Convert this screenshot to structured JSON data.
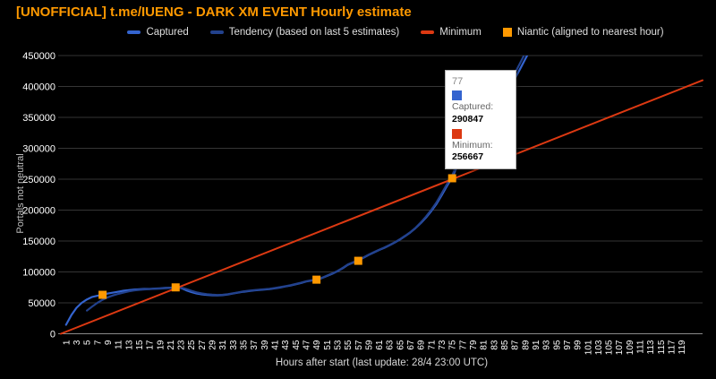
{
  "title": {
    "text": "[UNOFFICIAL] t.me/IUENG - DARK XM EVENT Hourly estimate",
    "color": "#ff9900"
  },
  "legend": {
    "position": "top",
    "items": [
      {
        "label": "Captured",
        "marker": "line",
        "color": "#3464cf"
      },
      {
        "label": "Tendency (based on last 5 estimates)",
        "marker": "line",
        "color": "#22418c"
      },
      {
        "label": "Minimum",
        "marker": "line",
        "color": "#dc3912"
      },
      {
        "label": "Niantic (aligned to nearest hour)",
        "marker": "square",
        "color": "#ff9900"
      }
    ]
  },
  "tooltip": {
    "hour": "77",
    "rows": [
      {
        "label": "Captured:",
        "value": "290847",
        "color": "#3464cf"
      },
      {
        "label": "Minimum:",
        "value": "256667",
        "color": "#dc3912"
      }
    ]
  },
  "chart_data": {
    "type": "line",
    "title": "[UNOFFICIAL] t.me/IUENG - DARK XM EVENT Hourly estimate",
    "xlabel": "Hours after start (last update: 28/4 23:00 UTC)",
    "ylabel": "Portals not neutral",
    "background": "#000000",
    "grid": true,
    "legend_position": "top",
    "xlim": [
      0,
      123
    ],
    "ylim": [
      0,
      450000
    ],
    "y_ticks": [
      0,
      50000,
      100000,
      150000,
      200000,
      250000,
      300000,
      350000,
      400000,
      450000
    ],
    "x_ticks": [
      1,
      3,
      5,
      7,
      9,
      11,
      13,
      15,
      17,
      19,
      21,
      23,
      25,
      27,
      29,
      31,
      33,
      35,
      37,
      39,
      41,
      43,
      45,
      47,
      49,
      51,
      53,
      55,
      57,
      59,
      61,
      63,
      65,
      67,
      69,
      71,
      73,
      75,
      77,
      79,
      81,
      83,
      85,
      87,
      89,
      91,
      93,
      95,
      97,
      99,
      101,
      103,
      105,
      107,
      109,
      111,
      113,
      115,
      117,
      119
    ],
    "series": [
      {
        "id": "captured",
        "name": "Captured",
        "type": "line",
        "color": "#3464cf",
        "width": 2.2,
        "points": [
          [
            1,
            14500
          ],
          [
            2,
            30000
          ],
          [
            3,
            42000
          ],
          [
            4,
            50000
          ],
          [
            5,
            55500
          ],
          [
            6,
            59500
          ],
          [
            7,
            61500
          ],
          [
            8,
            63000
          ],
          [
            9,
            65000
          ],
          [
            10,
            66500
          ],
          [
            11,
            68000
          ],
          [
            12,
            69500
          ],
          [
            13,
            70500
          ],
          [
            14,
            71500
          ],
          [
            15,
            72000
          ],
          [
            16,
            72500
          ],
          [
            17,
            72500
          ],
          [
            18,
            73000
          ],
          [
            19,
            73500
          ],
          [
            20,
            74000
          ],
          [
            21,
            74500
          ],
          [
            22,
            75000
          ],
          [
            23,
            74000
          ],
          [
            24,
            70500
          ],
          [
            25,
            67500
          ],
          [
            26,
            65000
          ],
          [
            27,
            63800
          ],
          [
            28,
            62800
          ],
          [
            29,
            62300
          ],
          [
            30,
            62000
          ],
          [
            31,
            62500
          ],
          [
            32,
            63500
          ],
          [
            33,
            65000
          ],
          [
            34,
            66500
          ],
          [
            35,
            68000
          ],
          [
            36,
            69000
          ],
          [
            37,
            70000
          ],
          [
            38,
            70800
          ],
          [
            39,
            71500
          ],
          [
            40,
            72300
          ],
          [
            41,
            73500
          ],
          [
            42,
            74800
          ],
          [
            43,
            76500
          ],
          [
            44,
            78000
          ],
          [
            45,
            80000
          ],
          [
            46,
            82000
          ],
          [
            47,
            84500
          ],
          [
            48,
            86000
          ],
          [
            49,
            87500
          ],
          [
            50,
            90000
          ],
          [
            51,
            93500
          ],
          [
            52,
            97000
          ],
          [
            53,
            101000
          ],
          [
            54,
            106000
          ],
          [
            55,
            111500
          ],
          [
            56,
            115000
          ],
          [
            57,
            118500
          ],
          [
            58,
            123000
          ],
          [
            59,
            127500
          ],
          [
            60,
            131500
          ],
          [
            61,
            135500
          ],
          [
            62,
            139000
          ],
          [
            63,
            143000
          ],
          [
            64,
            147500
          ],
          [
            65,
            152500
          ],
          [
            66,
            158000
          ],
          [
            67,
            164000
          ],
          [
            68,
            171000
          ],
          [
            69,
            179000
          ],
          [
            70,
            188000
          ],
          [
            71,
            198500
          ],
          [
            72,
            210000
          ],
          [
            73,
            224000
          ],
          [
            74,
            239000
          ],
          [
            75,
            252500
          ],
          [
            76,
            272000
          ],
          [
            77,
            290847
          ],
          [
            78,
            302000
          ],
          [
            79,
            311500
          ],
          [
            80,
            320000
          ],
          [
            81,
            329000
          ],
          [
            82,
            340000
          ],
          [
            83,
            353000
          ],
          [
            84,
            367000
          ],
          [
            85,
            381000
          ],
          [
            86,
            396000
          ],
          [
            87,
            412000
          ],
          [
            88,
            428000
          ],
          [
            89,
            444000
          ],
          [
            90,
            460000
          ]
        ]
      },
      {
        "id": "tendency",
        "name": "Tendency (based on last 5 estimates)",
        "type": "line",
        "color": "#22418c",
        "width": 2.2,
        "points": [
          [
            5,
            37500
          ],
          [
            6,
            44000
          ],
          [
            7,
            50000
          ],
          [
            8,
            55000
          ],
          [
            9,
            59000
          ],
          [
            10,
            62000
          ],
          [
            11,
            64500
          ],
          [
            12,
            66500
          ],
          [
            13,
            68500
          ],
          [
            14,
            70000
          ],
          [
            15,
            71000
          ],
          [
            16,
            71800
          ],
          [
            17,
            72200
          ],
          [
            18,
            72600
          ],
          [
            19,
            73000
          ],
          [
            20,
            73500
          ],
          [
            21,
            74000
          ],
          [
            22,
            74500
          ],
          [
            23,
            74800
          ],
          [
            24,
            72500
          ],
          [
            25,
            69500
          ],
          [
            26,
            67000
          ],
          [
            27,
            65200
          ],
          [
            28,
            64000
          ],
          [
            29,
            63200
          ],
          [
            30,
            62800
          ],
          [
            31,
            63000
          ],
          [
            32,
            64000
          ],
          [
            33,
            65500
          ],
          [
            34,
            67000
          ],
          [
            35,
            68500
          ],
          [
            36,
            69500
          ],
          [
            37,
            70500
          ],
          [
            38,
            71300
          ],
          [
            39,
            72000
          ],
          [
            40,
            72800
          ],
          [
            41,
            74000
          ],
          [
            42,
            75300
          ],
          [
            43,
            77000
          ],
          [
            44,
            78500
          ],
          [
            45,
            80500
          ],
          [
            46,
            82500
          ],
          [
            47,
            85000
          ],
          [
            48,
            86500
          ],
          [
            49,
            88000
          ],
          [
            50,
            90500
          ],
          [
            51,
            94000
          ],
          [
            52,
            97500
          ],
          [
            53,
            101500
          ],
          [
            54,
            106500
          ],
          [
            55,
            112000
          ],
          [
            56,
            115500
          ],
          [
            57,
            119000
          ],
          [
            58,
            123500
          ],
          [
            59,
            128000
          ],
          [
            60,
            132000
          ],
          [
            61,
            136000
          ],
          [
            62,
            139500
          ],
          [
            63,
            143500
          ],
          [
            64,
            148000
          ],
          [
            65,
            153000
          ],
          [
            66,
            158500
          ],
          [
            67,
            164500
          ],
          [
            68,
            171500
          ],
          [
            69,
            180000
          ],
          [
            70,
            189500
          ],
          [
            71,
            200500
          ],
          [
            72,
            212500
          ],
          [
            73,
            227000
          ],
          [
            74,
            242000
          ],
          [
            75,
            256000
          ],
          [
            76,
            276000
          ],
          [
            77,
            295000
          ],
          [
            78,
            306000
          ],
          [
            79,
            316000
          ],
          [
            80,
            325000
          ],
          [
            81,
            334500
          ],
          [
            82,
            346000
          ],
          [
            83,
            359500
          ],
          [
            84,
            374000
          ],
          [
            85,
            389000
          ],
          [
            86,
            404500
          ],
          [
            87,
            421000
          ],
          [
            88,
            437500
          ],
          [
            89,
            454000
          ]
        ]
      },
      {
        "id": "minimum",
        "name": "Minimum",
        "type": "line",
        "color": "#dc3912",
        "width": 2,
        "rule": "value = hour / 120 * 400000",
        "points": [
          [
            0,
            0
          ],
          [
            123,
            410000
          ]
        ]
      },
      {
        "id": "niantic",
        "name": "Niantic (aligned to nearest hour)",
        "type": "scatter",
        "marker": "square",
        "color": "#ff9900",
        "size": 9,
        "points": [
          [
            8,
            63000
          ],
          [
            22,
            75000
          ],
          [
            49,
            87500
          ],
          [
            57,
            118000
          ],
          [
            75,
            251500
          ]
        ]
      }
    ]
  }
}
